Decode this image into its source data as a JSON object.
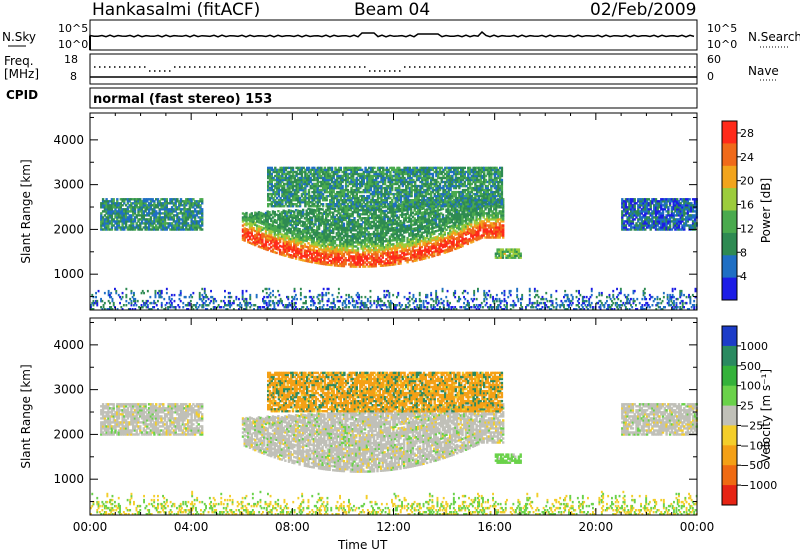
{
  "header": {
    "station": "Hankasalmi (fitACF)",
    "beam": "Beam 04",
    "date": "02/Feb/2009"
  },
  "aux_panels": {
    "nsky_label": "N.Sky",
    "nsearch_label": "N.Search",
    "noise_ticks": [
      "10^5",
      "10^0"
    ],
    "freq_label": "Freq.",
    "freq_unit": "[MHz]",
    "freq_ticks": [
      "18",
      "8"
    ],
    "nave_label": "Nave",
    "nave_ticks": [
      "60",
      "0"
    ],
    "cpid_label": "CPID",
    "cpid_text": "normal (fast stereo) 153"
  },
  "colors": {
    "power_scale": [
      "#1c1ce6",
      "#1f6fc4",
      "#2e8a52",
      "#4aaa4e",
      "#9ccc3c",
      "#f2a41c",
      "#f06a1a",
      "#ff2a1a"
    ],
    "velocity_scale": [
      "#1c3cc8",
      "#2a8a60",
      "#34b23a",
      "#6ad24a",
      "#c0c0b8",
      "#f4ce2a",
      "#f4a016",
      "#ef6a12",
      "#e62414"
    ]
  },
  "chart_data": [
    {
      "type": "heatmap",
      "title": "Power",
      "xlabel": "Time UT",
      "ylabel": "Slant Range [km]",
      "x_ticks": [
        "00:00",
        "04:00",
        "08:00",
        "12:00",
        "16:00",
        "20:00",
        "00:00"
      ],
      "xlim_hours": [
        0,
        24
      ],
      "ylim": [
        200,
        4600
      ],
      "y_ticks": [
        1000,
        2000,
        3000,
        4000
      ],
      "colorbar": {
        "label": "Power [dB]",
        "ticks": [
          "4",
          "8",
          "12",
          "16",
          "20",
          "24",
          "28"
        ],
        "range": [
          0,
          30
        ]
      },
      "regions": [
        {
          "name": "patch-early",
          "t": [
            0.4,
            4.4
          ],
          "range_km": [
            1980,
            2700
          ],
          "value": 9,
          "level": "low"
        },
        {
          "name": "main-echo",
          "t": [
            6.0,
            16.3
          ],
          "range_km": [
            1150,
            2700
          ],
          "value": 15,
          "level": "high"
        },
        {
          "name": "upper-echo",
          "t": [
            7.0,
            16.3
          ],
          "range_km": [
            2500,
            3400
          ],
          "value": 10,
          "level": "low"
        },
        {
          "name": "late-echo",
          "t": [
            16.0,
            17.0
          ],
          "range_km": [
            1350,
            1550
          ],
          "value": 14,
          "level": "mid"
        },
        {
          "name": "patch-late",
          "t": [
            21.0,
            24.0
          ],
          "range_km": [
            1980,
            2700
          ],
          "value": 6,
          "level": "low"
        },
        {
          "name": "ground-band",
          "t": [
            0.0,
            24.0
          ],
          "range_km": [
            200,
            600
          ],
          "value": 6,
          "level": "low"
        }
      ]
    },
    {
      "type": "heatmap",
      "title": "Velocity",
      "xlabel": "Time UT",
      "ylabel": "Slant Range [km]",
      "x_ticks": [
        "00:00",
        "04:00",
        "08:00",
        "12:00",
        "16:00",
        "20:00",
        "00:00"
      ],
      "xlim_hours": [
        0,
        24
      ],
      "ylim": [
        200,
        4600
      ],
      "y_ticks": [
        1000,
        2000,
        3000,
        4000
      ],
      "colorbar": {
        "label": "Velocity [m s⁻¹]",
        "ticks": [
          "1000",
          "500",
          "100",
          "25",
          "−25",
          "−100",
          "−500",
          "−1000"
        ],
        "range": [
          -1000,
          1000
        ]
      },
      "regions": [
        {
          "name": "patch-early",
          "t": [
            0.4,
            4.4
          ],
          "range_km": [
            1980,
            2700
          ],
          "value": 0
        },
        {
          "name": "main-echo",
          "t": [
            6.0,
            16.3
          ],
          "range_km": [
            1150,
            2700
          ],
          "value": 0
        },
        {
          "name": "upper-echo",
          "t": [
            7.0,
            16.3
          ],
          "range_km": [
            2500,
            3400
          ],
          "value": -150
        },
        {
          "name": "late-echo",
          "t": [
            16.0,
            17.0
          ],
          "range_km": [
            1350,
            1550
          ],
          "value": 50
        },
        {
          "name": "patch-late",
          "t": [
            21.0,
            24.0
          ],
          "range_km": [
            1980,
            2700
          ],
          "value": 0
        },
        {
          "name": "ground-band",
          "t": [
            0.0,
            24.0
          ],
          "range_km": [
            200,
            600
          ],
          "value": 60
        }
      ]
    }
  ]
}
